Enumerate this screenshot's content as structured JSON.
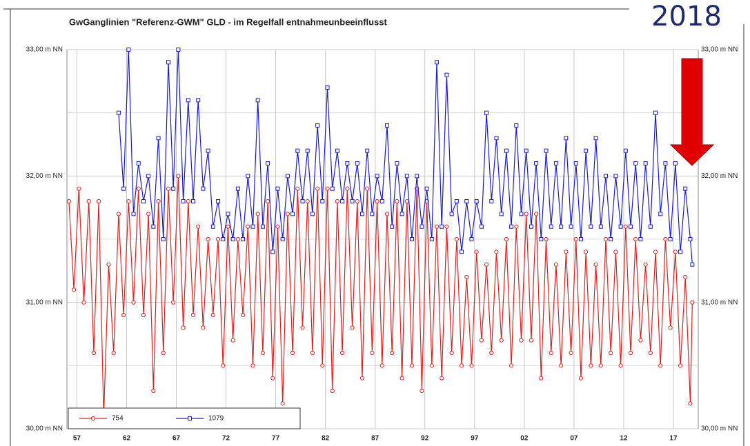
{
  "chart_data": {
    "type": "line",
    "title": "GwGanglinien \"Referenz-GWM\" GLD - im Regelfall entnahmeunbeeinflusst",
    "annotation": "2018",
    "xlim": [
      1956,
      2019.5
    ],
    "xticks": [
      {
        "value": 1957,
        "label": "57"
      },
      {
        "value": 1962,
        "label": "62"
      },
      {
        "value": 1967,
        "label": "67"
      },
      {
        "value": 1972,
        "label": "72"
      },
      {
        "value": 1977,
        "label": "77"
      },
      {
        "value": 1982,
        "label": "82"
      },
      {
        "value": 1987,
        "label": "87"
      },
      {
        "value": 1992,
        "label": "92"
      },
      {
        "value": 1997,
        "label": "97"
      },
      {
        "value": 2002,
        "label": "02"
      },
      {
        "value": 2007,
        "label": "07"
      },
      {
        "value": 2012,
        "label": "12"
      },
      {
        "value": 2017,
        "label": "17"
      }
    ],
    "ylim": [
      30,
      33
    ],
    "yticks": [
      {
        "value": 30,
        "label": "30,00 m NN"
      },
      {
        "value": 31,
        "label": "31,00 m NN"
      },
      {
        "value": 32,
        "label": "32,00 m NN"
      },
      {
        "value": 33,
        "label": "33,00 m NN"
      }
    ],
    "minor_yticks": [
      30.5,
      31.5,
      32.5
    ],
    "grid": true,
    "legend": "bottom-left",
    "x": [
      1956.2,
      1956.7,
      1957.2,
      1957.7,
      1958.2,
      1958.7,
      1959.2,
      1959.7,
      1960.2,
      1960.7,
      1961.2,
      1961.7,
      1962.2,
      1962.7,
      1963.2,
      1963.7,
      1964.2,
      1964.7,
      1965.2,
      1965.7,
      1966.2,
      1966.7,
      1967.2,
      1967.7,
      1968.2,
      1968.7,
      1969.2,
      1969.7,
      1970.2,
      1970.7,
      1971.2,
      1971.7,
      1972.2,
      1972.7,
      1973.2,
      1973.7,
      1974.2,
      1974.7,
      1975.2,
      1975.7,
      1976.2,
      1976.7,
      1977.2,
      1977.7,
      1978.2,
      1978.7,
      1979.2,
      1979.7,
      1980.2,
      1980.7,
      1981.2,
      1981.7,
      1982.2,
      1982.7,
      1983.2,
      1983.7,
      1984.2,
      1984.7,
      1985.2,
      1985.7,
      1986.2,
      1986.7,
      1987.2,
      1987.7,
      1988.2,
      1988.7,
      1989.2,
      1989.7,
      1990.2,
      1990.7,
      1991.2,
      1991.7,
      1992.2,
      1992.7,
      1993.2,
      1993.7,
      1994.2,
      1994.7,
      1995.2,
      1995.7,
      1996.2,
      1996.7,
      1997.2,
      1997.7,
      1998.2,
      1998.7,
      1999.2,
      1999.7,
      2000.2,
      2000.7,
      2001.2,
      2001.7,
      2002.2,
      2002.7,
      2003.2,
      2003.7,
      2004.2,
      2004.7,
      2005.2,
      2005.7,
      2006.2,
      2006.7,
      2007.2,
      2007.7,
      2008.2,
      2008.7,
      2009.2,
      2009.7,
      2010.2,
      2010.7,
      2011.2,
      2011.7,
      2012.2,
      2012.7,
      2013.2,
      2013.7,
      2014.2,
      2014.7,
      2015.2,
      2015.7,
      2016.2,
      2016.7,
      2017.2,
      2017.7,
      2018.2,
      2018.7,
      2018.9
    ],
    "series": [
      {
        "name": "754",
        "color": "#e02020",
        "marker": "circle",
        "values": [
          31.8,
          31.1,
          31.9,
          31.0,
          31.8,
          30.6,
          31.8,
          30.1,
          31.3,
          30.6,
          31.7,
          30.9,
          31.8,
          31.0,
          31.9,
          30.9,
          31.7,
          30.3,
          31.8,
          30.6,
          31.9,
          31.0,
          32.0,
          30.8,
          31.8,
          30.9,
          31.6,
          30.8,
          31.5,
          30.9,
          31.5,
          30.5,
          31.6,
          30.7,
          31.5,
          30.9,
          31.6,
          30.5,
          31.7,
          30.6,
          31.8,
          30.4,
          31.6,
          30.2,
          31.7,
          30.6,
          31.9,
          30.8,
          31.8,
          30.6,
          31.9,
          30.5,
          31.9,
          30.3,
          31.8,
          30.6,
          31.9,
          30.8,
          31.8,
          30.4,
          31.9,
          30.6,
          31.8,
          30.5,
          31.7,
          30.6,
          31.8,
          30.4,
          31.8,
          30.5,
          31.9,
          30.3,
          31.8,
          30.5,
          31.6,
          30.4,
          31.6,
          30.6,
          31.5,
          30.5,
          31.2,
          30.5,
          31.4,
          30.7,
          31.3,
          30.6,
          31.4,
          30.7,
          31.5,
          30.5,
          31.6,
          30.7,
          31.7,
          30.7,
          31.7,
          30.4,
          31.5,
          30.6,
          31.3,
          30.5,
          31.4,
          30.6,
          31.5,
          30.4,
          31.4,
          30.5,
          31.3,
          30.5,
          31.5,
          30.6,
          31.4,
          30.5,
          31.6,
          30.6,
          31.5,
          30.7,
          31.3,
          30.6,
          31.4,
          30.5,
          31.5,
          30.8,
          31.4,
          30.5,
          31.2,
          30.2,
          31.0
        ]
      },
      {
        "name": "1079",
        "color": "#1a1ad0",
        "marker": "square",
        "values": [
          null,
          null,
          null,
          null,
          null,
          null,
          null,
          null,
          null,
          null,
          32.5,
          31.9,
          33.0,
          31.7,
          32.1,
          31.8,
          32.0,
          31.6,
          32.3,
          31.5,
          32.9,
          31.9,
          33.0,
          31.8,
          32.6,
          31.8,
          32.6,
          31.9,
          32.2,
          31.6,
          31.8,
          31.5,
          31.7,
          31.5,
          31.9,
          31.5,
          32.0,
          31.6,
          32.6,
          31.6,
          32.1,
          31.4,
          31.9,
          31.5,
          32.0,
          31.7,
          32.2,
          31.8,
          32.2,
          31.7,
          32.4,
          31.8,
          32.7,
          31.9,
          32.2,
          31.8,
          32.1,
          31.8,
          32.1,
          31.7,
          32.2,
          31.7,
          32.0,
          31.8,
          32.4,
          31.6,
          32.1,
          31.7,
          32.0,
          31.5,
          32.0,
          31.6,
          31.9,
          31.5,
          32.9,
          31.6,
          32.8,
          31.7,
          31.8,
          31.4,
          31.8,
          31.5,
          31.8,
          31.6,
          32.5,
          31.8,
          32.3,
          31.7,
          32.2,
          31.6,
          32.4,
          31.7,
          32.2,
          31.6,
          32.1,
          31.5,
          32.2,
          31.6,
          32.1,
          31.6,
          32.3,
          31.6,
          32.1,
          31.5,
          32.2,
          31.6,
          32.3,
          31.6,
          32.0,
          31.5,
          32.0,
          31.6,
          32.2,
          31.6,
          32.1,
          31.5,
          32.1,
          31.6,
          32.5,
          31.7,
          32.1,
          31.5,
          32.1,
          31.4,
          31.9,
          31.5,
          31.3
        ]
      }
    ]
  }
}
